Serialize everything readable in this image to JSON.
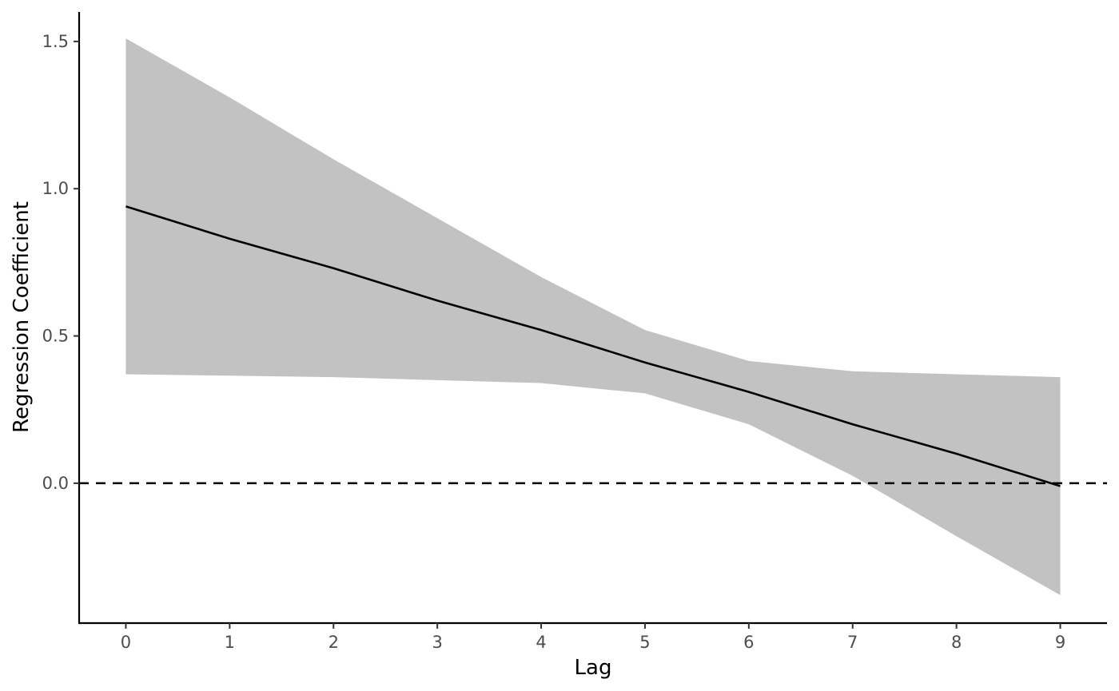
{
  "chart_data": {
    "type": "line",
    "title": "",
    "xlabel": "Lag",
    "ylabel": "Regression Coefficient",
    "x": [
      0,
      1,
      2,
      3,
      4,
      5,
      6,
      7,
      8,
      9
    ],
    "x_ticks": [
      "0",
      "1",
      "2",
      "3",
      "4",
      "5",
      "6",
      "7",
      "8",
      "9"
    ],
    "y_ticks": [
      "0.0",
      "0.5",
      "1.0",
      "1.5"
    ],
    "y_tick_values": [
      0.0,
      0.5,
      1.0,
      1.5
    ],
    "xlim": [
      -0.45,
      9.45
    ],
    "ylim": [
      -0.475,
      1.6
    ],
    "series": [
      {
        "values": [
          0.94,
          0.83,
          0.73,
          0.62,
          0.52,
          0.41,
          0.31,
          0.2,
          0.1,
          -0.01
        ],
        "lower": [
          0.37,
          0.365,
          0.36,
          0.35,
          0.34,
          0.305,
          0.2,
          0.025,
          -0.18,
          -0.38
        ],
        "upper": [
          1.51,
          1.31,
          1.1,
          0.9,
          0.7,
          0.52,
          0.415,
          0.38,
          0.37,
          0.36
        ],
        "color": "#000000",
        "band_color": "#c2c2c2"
      }
    ],
    "reference_line": {
      "y": 0.0,
      "style": "dashed",
      "color": "#000000"
    },
    "grid": false,
    "legend": "none"
  }
}
